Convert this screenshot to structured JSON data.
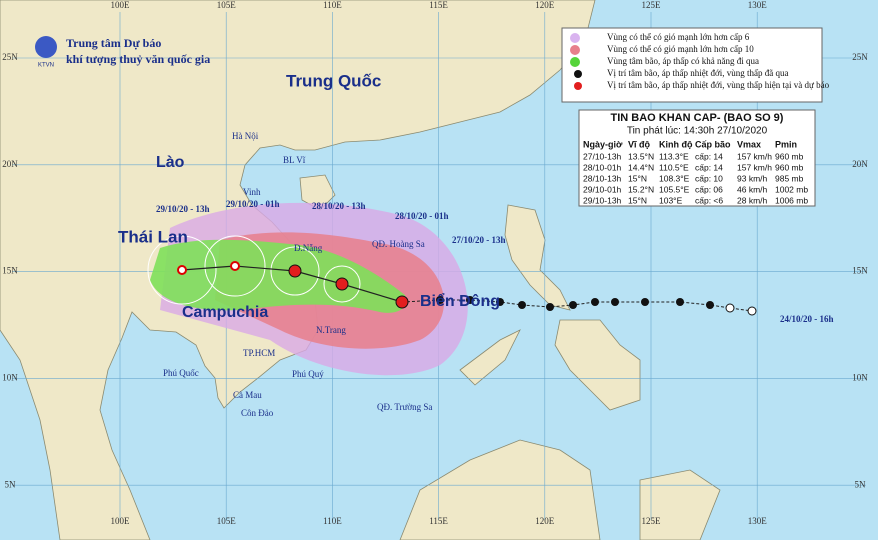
{
  "agency": {
    "logo": "KTVN",
    "line1": "Trung tâm Dự báo",
    "line2": "khí tượng thuỷ văn quốc gia"
  },
  "legend": [
    "Vùng có thể có gió mạnh lớn hơn cấp 6",
    "Vùng có thể có gió mạnh lớn hơn cấp 10",
    "Vùng tâm bão, áp thấp có khả năng đi qua",
    "Vị trí tâm bão, áp thấp nhiệt đới, vùng thấp đã qua",
    "Vị trí tâm bão, áp thấp nhiệt đới, vùng thấp hiện tại và dự báo"
  ],
  "bulletin": {
    "title": "TIN BAO KHAN CAP- (BAO SO 9)",
    "issued": "Tin phát lúc: 14:30h 27/10/2020",
    "columns": [
      "Ngày-giờ",
      "Vĩ độ",
      "Kinh độ",
      "Cấp bão",
      "Vmax",
      "Pmin"
    ],
    "rows": [
      [
        "27/10-13h",
        "13.5°N",
        "113.3°E",
        "cấp: 14",
        "157 km/h",
        "960 mb"
      ],
      [
        "28/10-01h",
        "14.4°N",
        "110.5°E",
        "cấp: 14",
        "157 km/h",
        "960 mb"
      ],
      [
        "28/10-13h",
        "15°N",
        "108.3°E",
        "cấp: 10",
        "93 km/h",
        "985 mb"
      ],
      [
        "29/10-01h",
        "15.2°N",
        "105.5°E",
        "cấp: 06",
        "46 km/h",
        "1002 mb"
      ],
      [
        "29/10-13h",
        "15°N",
        "103°E",
        "cấp: <6",
        "28 km/h",
        "1006 mb"
      ]
    ]
  },
  "map": {
    "countries": [
      "Trung Quốc",
      "Lào",
      "Thái Lan",
      "Campuchia",
      "Biển Đông"
    ],
    "places": [
      "Hà Nội",
      "BL Vĩ",
      "Vinh",
      "Đ.Nẵng",
      "QĐ. Hoàng Sa",
      "N.Trang",
      "TP.HCM",
      "Phú Quốc",
      "Phú Quý",
      "Cà Mau",
      "Côn Đảo",
      "QĐ. Trường Sa"
    ],
    "track_labels": [
      "29/10/20 - 13h",
      "29/10/20 - 01h",
      "28/10/20 - 13h",
      "28/10/20 - 01h",
      "27/10/20 - 13h",
      "24/10/20 - 16h"
    ],
    "longitudes": [
      "100E",
      "105E",
      "110E",
      "115E",
      "120E",
      "125E",
      "130E"
    ],
    "latitudes": [
      "25N",
      "20N",
      "15N",
      "10N",
      "5N"
    ]
  }
}
